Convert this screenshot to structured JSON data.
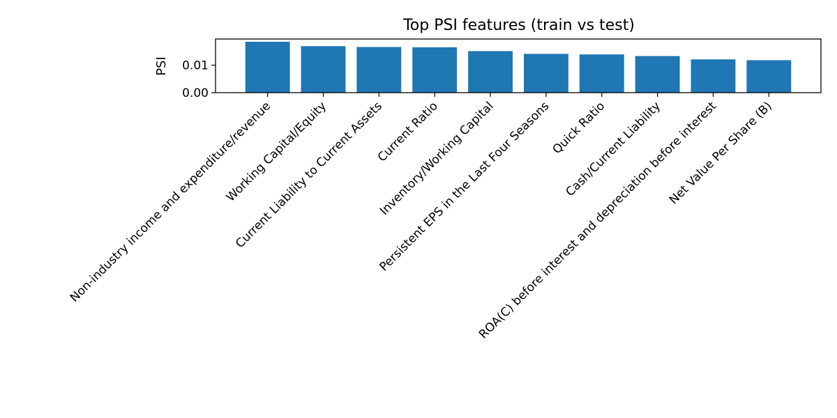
{
  "chart_data": {
    "type": "bar",
    "title": "Top PSI features (train vs test)",
    "xlabel": "",
    "ylabel": "PSI",
    "ylim": [
      0,
      0.0195
    ],
    "yticks": [
      0.0,
      0.01
    ],
    "ytick_labels": [
      "0.00",
      "0.01"
    ],
    "grid": false,
    "bar_color": "#1f77b4",
    "categories": [
      "Non-industry income and expenditure/revenue",
      "Working Capital/Equity",
      "Current Liability to Current Assets",
      "Current Ratio",
      "Inventory/Working Capital",
      "Persistent EPS in the Last Four Seasons",
      "Quick Ratio",
      "Cash/Current Liability",
      "ROA(C) before interest and depreciation before interest",
      "Net Value Per Share (B)"
    ],
    "values": [
      0.0185,
      0.0169,
      0.0166,
      0.0165,
      0.0151,
      0.0141,
      0.0139,
      0.0133,
      0.0121,
      0.0118
    ]
  }
}
